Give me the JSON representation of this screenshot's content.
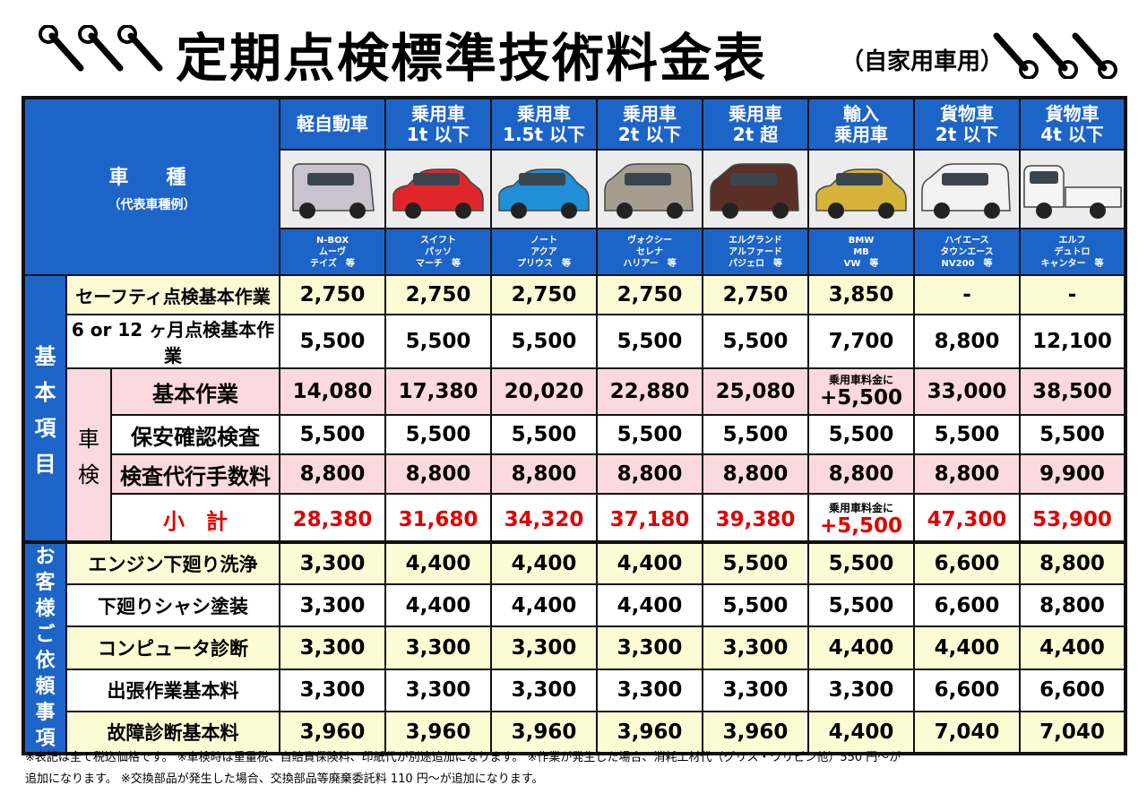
{
  "title": {
    "main": "定期点検標準技術料金表",
    "sub": "（自家用車用）"
  },
  "header": {
    "vehicle_label": "車　種",
    "vehicle_sub": "（代表車種例）",
    "columns": [
      {
        "l1": "軽自動車",
        "l2": "",
        "models": [
          "N-BOX",
          "ムーヴ",
          "テイズ　等"
        ],
        "car_color": "#c9c3cf"
      },
      {
        "l1": "乗用車",
        "l2": "1t 以下",
        "models": [
          "スイフト",
          "パッソ",
          "マーチ　等"
        ],
        "car_color": "#e0262b"
      },
      {
        "l1": "乗用車",
        "l2": "1.5t 以下",
        "models": [
          "ノート",
          "アクア",
          "プリウス　等"
        ],
        "car_color": "#1e8fd8"
      },
      {
        "l1": "乗用車",
        "l2": "2t 以下",
        "models": [
          "ヴォクシー",
          "セレナ",
          "ハリアー　等"
        ],
        "car_color": "#a79d8f"
      },
      {
        "l1": "乗用車",
        "l2": "2t 超",
        "models": [
          "エルグランド",
          "アルファード",
          "パジェロ　等"
        ],
        "car_color": "#5a2f25"
      },
      {
        "l1": "輸入",
        "l2": "乗用車",
        "models": [
          "BMW",
          "MB",
          "VW　等"
        ],
        "car_color": "#d6b33a"
      },
      {
        "l1": "貨物車",
        "l2": "2t 以下",
        "models": [
          "ハイエース",
          "タウンエース",
          "NV200　等"
        ],
        "car_color": "#f2f2f2"
      },
      {
        "l1": "貨物車",
        "l2": "4t 以下",
        "models": [
          "エルフ",
          "デュトロ",
          "キャンター　等"
        ],
        "car_color": "#f5f5f5"
      }
    ]
  },
  "side_labels": {
    "basic": [
      "基",
      "本",
      "項",
      "目"
    ],
    "shaken": [
      "車",
      "検"
    ],
    "customer": [
      "お",
      "客",
      "様",
      "ご",
      "依",
      "頼",
      "事",
      "項"
    ]
  },
  "basic_rows": [
    {
      "label": "セーフティ点検基本作業",
      "values": [
        "2,750",
        "2,750",
        "2,750",
        "2,750",
        "2,750",
        "3,850",
        "-",
        "-"
      ]
    },
    {
      "label": "6 or 12 ヶ月点検基本作業",
      "values": [
        "5,500",
        "5,500",
        "5,500",
        "5,500",
        "5,500",
        "7,700",
        "8,800",
        "12,100"
      ]
    }
  ],
  "shaken_rows": [
    {
      "label": "基本作業",
      "values": [
        "14,080",
        "17,380",
        "20,020",
        "22,880",
        "25,080",
        "",
        "33,000",
        "38,500"
      ],
      "note": {
        "line1": "乗用車料金に",
        "line2": "+5,500"
      }
    },
    {
      "label": "保安確認検査",
      "values": [
        "5,500",
        "5,500",
        "5,500",
        "5,500",
        "5,500",
        "5,500",
        "5,500",
        "5,500"
      ]
    },
    {
      "label": "検査代行手数料",
      "values": [
        "8,800",
        "8,800",
        "8,800",
        "8,800",
        "8,800",
        "8,800",
        "8,800",
        "9,900"
      ]
    }
  ],
  "subtotal": {
    "label": "小　計",
    "values": [
      "28,380",
      "31,680",
      "34,320",
      "37,180",
      "39,380",
      "",
      "47,300",
      "53,900"
    ],
    "note": {
      "line1": "乗用車料金に",
      "line2": "+5,500"
    }
  },
  "extra_rows": [
    {
      "label": "エンジン下廻り洗浄",
      "values": [
        "3,300",
        "4,400",
        "4,400",
        "4,400",
        "5,500",
        "5,500",
        "6,600",
        "8,800"
      ]
    },
    {
      "label": "下廻りシャシ塗装",
      "values": [
        "3,300",
        "4,400",
        "4,400",
        "4,400",
        "5,500",
        "5,500",
        "6,600",
        "8,800"
      ]
    },
    {
      "label": "コンピュータ診断",
      "values": [
        "3,300",
        "3,300",
        "3,300",
        "3,300",
        "3,300",
        "4,400",
        "4,400",
        "4,400"
      ]
    },
    {
      "label": "出張作業基本料",
      "values": [
        "3,300",
        "3,300",
        "3,300",
        "3,300",
        "3,300",
        "3,300",
        "6,600",
        "6,600"
      ]
    },
    {
      "label": "故障診断基本料",
      "values": [
        "3,960",
        "3,960",
        "3,960",
        "3,960",
        "3,960",
        "4,400",
        "7,040",
        "7,040"
      ]
    }
  ],
  "footnote": {
    "line1": "※表記は全て税込価格です。 ※車検時は重量税、自賠責保険料、印紙代が別途追加になります。 ※作業が発生した場合、消耗工材代（グリス・ワリピン他）550 円～が",
    "line2": "追加になります。 ※交換部品が発生した場合、交換部品等廃棄委託料 110 円～が追加になります。"
  },
  "colors": {
    "header_blue": "#1d64c8",
    "yellow": "#fdfbd4",
    "pink": "#fbd9de",
    "red": "#e00000"
  }
}
